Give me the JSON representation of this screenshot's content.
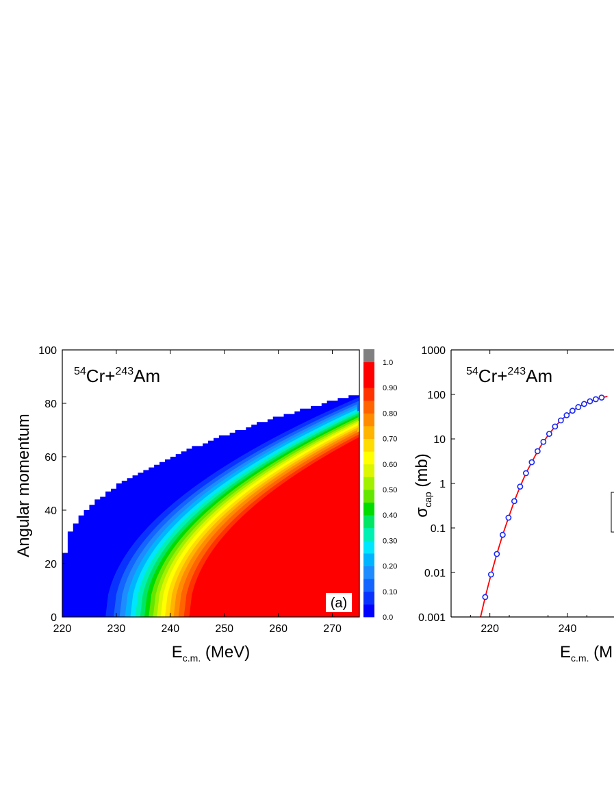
{
  "chart_data": [
    {
      "type": "heatmap",
      "panel_label": "(a)",
      "reaction": {
        "mass_a": "54",
        "elem_a": "Cr+",
        "mass_b": "243",
        "elem_b": "Am"
      },
      "xlabel": {
        "main": "E",
        "sub": "c.m.",
        "unit": " (MeV)"
      },
      "ylabel": "Angular momentum",
      "xlim": [
        220,
        275
      ],
      "ylim": [
        0,
        100
      ],
      "xticks": [
        220,
        230,
        240,
        250,
        260,
        270
      ],
      "yticks": [
        0,
        20,
        40,
        60,
        80,
        100
      ],
      "boundary_step": 1,
      "boundary": [
        [
          220,
          24
        ],
        [
          275,
          84
        ]
      ],
      "iso_lines_E0": [
        {
          "level": 0.05,
          "E0": 228
        },
        {
          "level": 0.1,
          "E0": 229.5
        },
        {
          "level": 0.15,
          "E0": 230.6
        },
        {
          "level": 0.2,
          "E0": 231.6
        },
        {
          "level": 0.25,
          "E0": 232.6
        },
        {
          "level": 0.3,
          "E0": 233.5
        },
        {
          "level": 0.35,
          "E0": 234.4
        },
        {
          "level": 0.4,
          "E0": 235.2
        },
        {
          "level": 0.45,
          "E0": 236
        },
        {
          "level": 0.5,
          "E0": 236.8
        },
        {
          "level": 0.55,
          "E0": 237.5
        },
        {
          "level": 0.6,
          "E0": 238.2
        },
        {
          "level": 0.65,
          "E0": 239
        },
        {
          "level": 0.7,
          "E0": 239.8
        },
        {
          "level": 0.75,
          "E0": 240.6
        },
        {
          "level": 0.8,
          "E0": 241.5
        },
        {
          "level": 0.85,
          "E0": 242.5
        },
        {
          "level": 0.9,
          "E0": 243.5
        },
        {
          "level": 0.95,
          "E0": 244.5
        }
      ],
      "colorbar": {
        "labels": [
          "0.0",
          "0.10",
          "0.20",
          "0.30",
          "0.40",
          "0.50",
          "0.60",
          "0.70",
          "0.80",
          "0.90",
          "1.0"
        ],
        "colors": [
          "#0000ff",
          "#0a32ff",
          "#1464ff",
          "#1e8cff",
          "#00b4ff",
          "#00e6ff",
          "#00f0b4",
          "#00e664",
          "#00dc00",
          "#64e600",
          "#a0f000",
          "#dcf500",
          "#ffff00",
          "#ffdc00",
          "#ffb400",
          "#ff8c00",
          "#ff6400",
          "#ff3200",
          "#ff0000",
          "#ff0000"
        ],
        "top_color": "#808080"
      }
    },
    {
      "type": "line",
      "reaction": {
        "mass_a": "54",
        "elem_a": "Cr+",
        "mass_b": "243",
        "elem_b": "Am"
      },
      "xlabel": {
        "main": "E",
        "sub": "c.m.",
        "unit": " (M"
      },
      "ylabel": {
        "main": "σ",
        "sub": "cap",
        "unit": " (mb)"
      },
      "xlim": [
        210,
        252
      ],
      "ylim": [
        0.001,
        1000
      ],
      "yscale": "log",
      "xticks": [
        220,
        240
      ],
      "yticks": [
        "0.001",
        "0.01",
        "0.1",
        "1",
        "10",
        "100",
        "1000"
      ],
      "series": [
        {
          "color": "#ff0000",
          "style": "line",
          "x": [
            217.6,
            218.8,
            220.3,
            221.8,
            223.3,
            224.8,
            226.3,
            227.8,
            229.3,
            230.8,
            232.3,
            233.8,
            235.3,
            236.8,
            238.3,
            239.8,
            241.3,
            242.8,
            244.3,
            245.8,
            247.3,
            248.8,
            250.3
          ],
          "y": [
            0.001,
            0.0028,
            0.009,
            0.026,
            0.07,
            0.17,
            0.4,
            0.85,
            1.7,
            3.0,
            5.3,
            8.6,
            13,
            19,
            26,
            34,
            43,
            52,
            61,
            70,
            78,
            85,
            90
          ]
        },
        {
          "color": "#1428ff",
          "style": "markers",
          "x": [
            218.8,
            220.3,
            221.8,
            223.3,
            224.8,
            226.3,
            227.8,
            229.3,
            230.8,
            232.3,
            233.8,
            235.3,
            236.8,
            238.3,
            239.8,
            241.3,
            242.8,
            244.3,
            245.8,
            247.3,
            248.8
          ],
          "y": [
            0.0028,
            0.009,
            0.026,
            0.07,
            0.17,
            0.4,
            0.85,
            1.7,
            3.0,
            5.3,
            8.6,
            13,
            19,
            26,
            34,
            43,
            52,
            61,
            70,
            78,
            85
          ]
        }
      ]
    }
  ]
}
